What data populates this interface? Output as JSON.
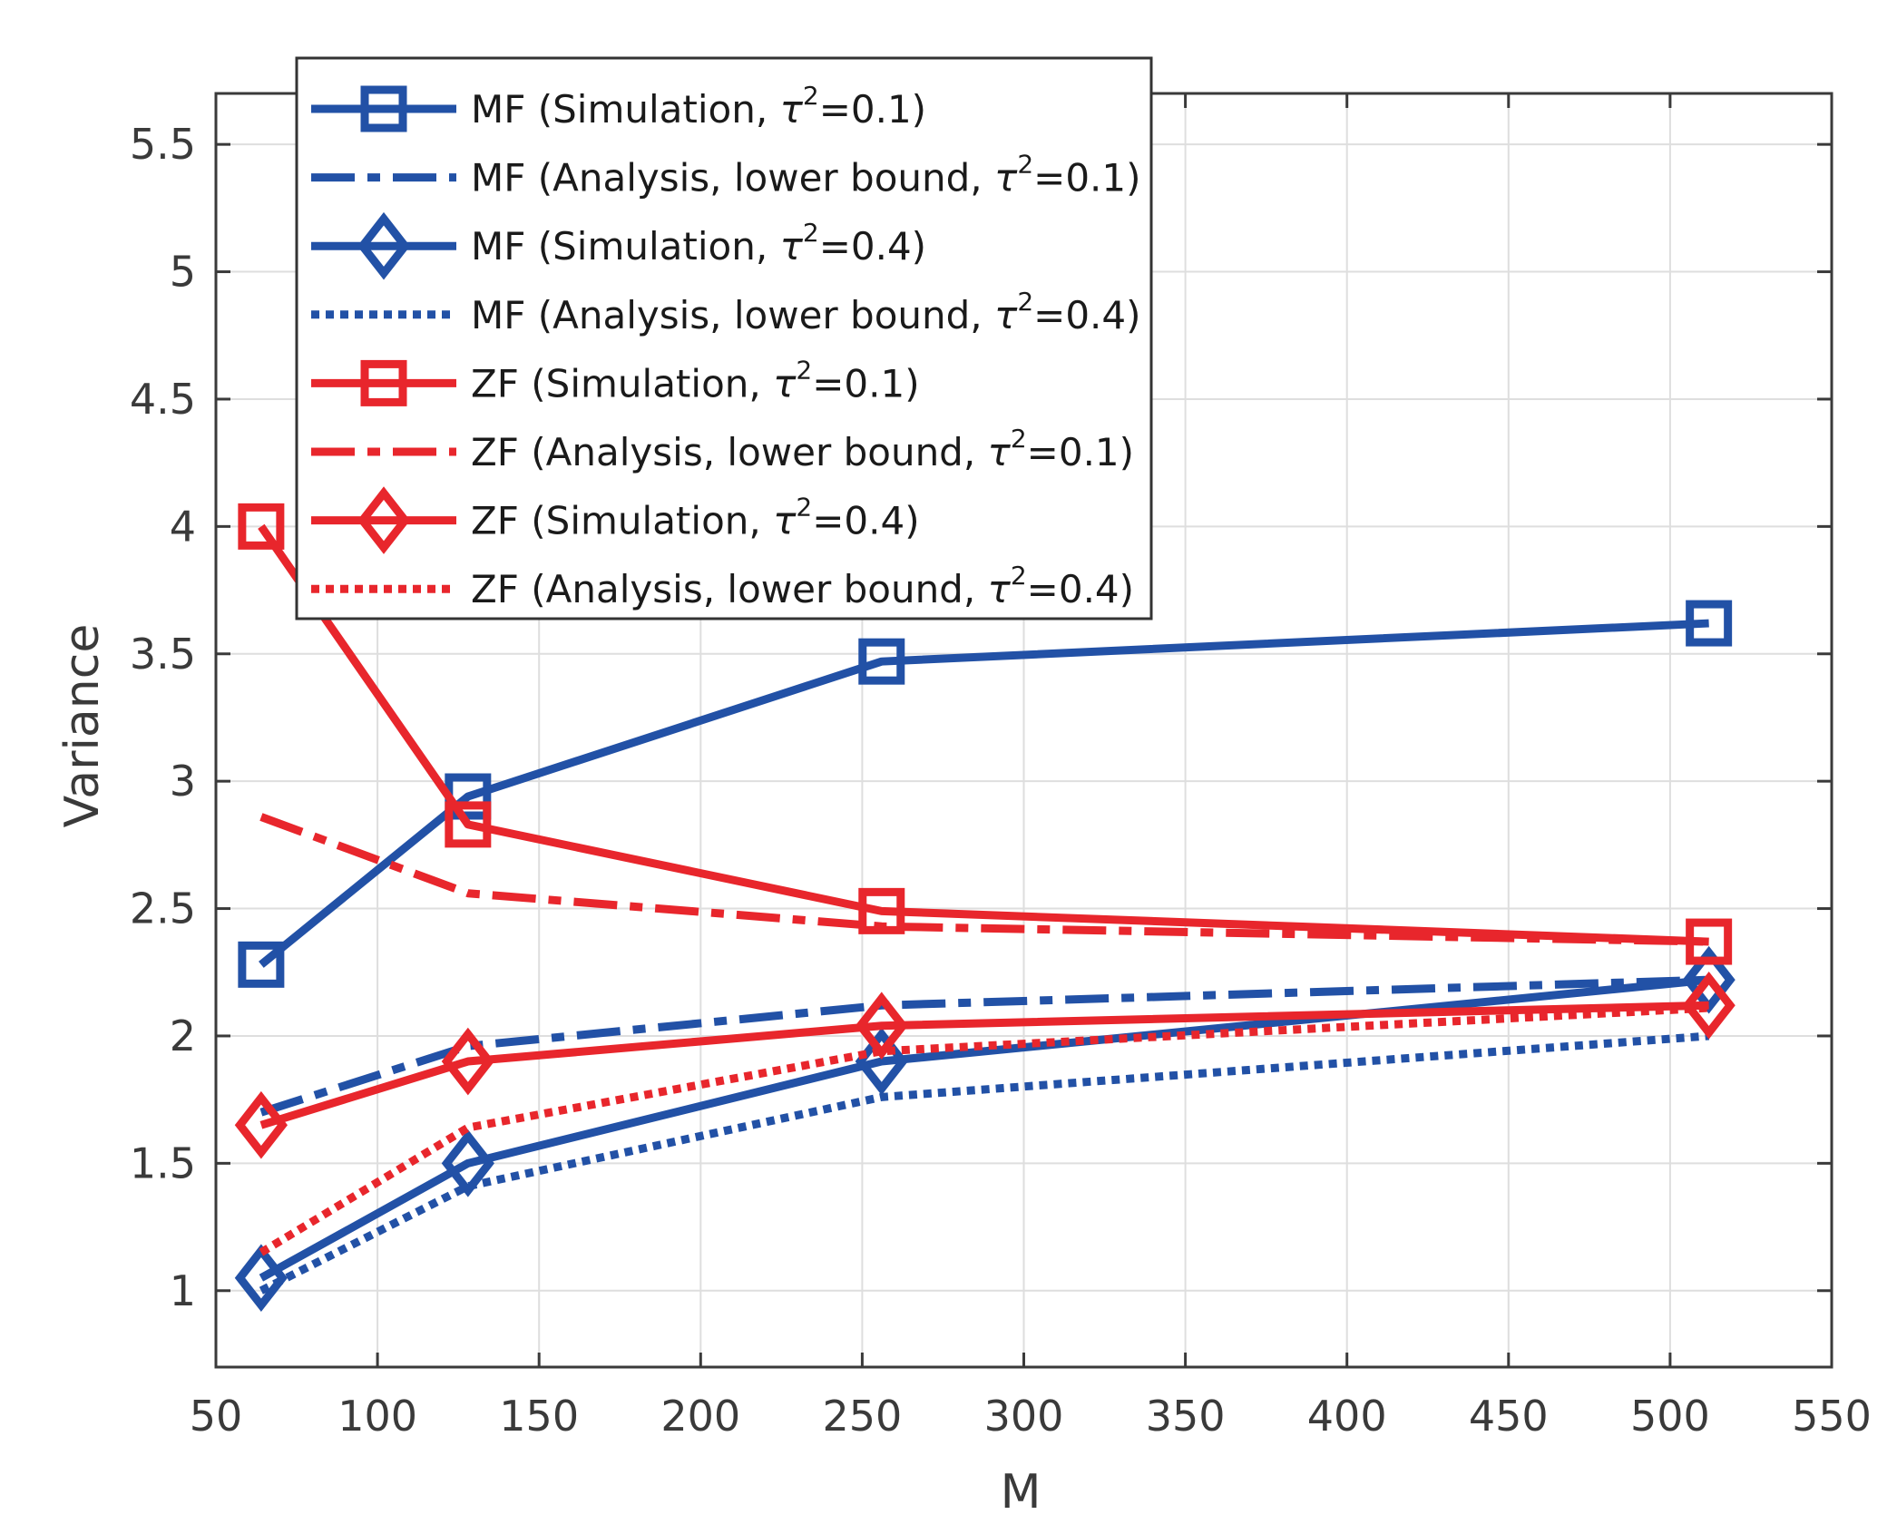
{
  "colors": {
    "blue": "#2251A6",
    "red": "#E8262C",
    "grid": "#DEDEDE",
    "axis": "#3a3a3a"
  },
  "chart_data": {
    "type": "line",
    "title": "",
    "xlabel": "M",
    "ylabel": "Variance",
    "xlim": [
      50,
      550
    ],
    "ylim": [
      0.7,
      5.7
    ],
    "xticks": [
      50,
      100,
      150,
      200,
      250,
      300,
      350,
      400,
      450,
      500,
      550
    ],
    "yticks": [
      1,
      1.5,
      2,
      2.5,
      3,
      3.5,
      4,
      4.5,
      5,
      5.5
    ],
    "xtick_labels": [
      "50",
      "100",
      "150",
      "200",
      "250",
      "300",
      "350",
      "400",
      "450",
      "500",
      "550"
    ],
    "ytick_labels": [
      "1",
      "1.5",
      "2",
      "2.5",
      "3",
      "3.5",
      "4",
      "4.5",
      "5",
      "5.5"
    ],
    "grid": true,
    "legend_position": "top-left",
    "series": [
      {
        "name": "MF (Simulation,  τ²=0.1)",
        "legend_prefix": "MF (Simulation,  ",
        "legend_value": "=0.1)",
        "color": "blue",
        "style": "solid",
        "marker": "square",
        "x": [
          64,
          128,
          256,
          512
        ],
        "y": [
          2.28,
          2.94,
          3.47,
          3.62
        ]
      },
      {
        "name": "MF (Analysis, lower bound,  τ²=0.1)",
        "legend_prefix": "MF (Analysis, lower bound,  ",
        "legend_value": "=0.1)",
        "color": "blue",
        "style": "dashdot",
        "marker": "none",
        "x": [
          64,
          128,
          256,
          512
        ],
        "y": [
          1.7,
          1.96,
          2.12,
          2.22
        ]
      },
      {
        "name": "MF (Simulation,  τ²=0.4)",
        "legend_prefix": "MF (Simulation,  ",
        "legend_value": "=0.4)",
        "color": "blue",
        "style": "solid",
        "marker": "diamond",
        "x": [
          64,
          128,
          256,
          512
        ],
        "y": [
          1.05,
          1.5,
          1.9,
          2.22
        ]
      },
      {
        "name": "MF (Analysis, lower bound,   τ²=0.4)",
        "legend_prefix": "MF (Analysis, lower bound,   ",
        "legend_value": "=0.4)",
        "color": "blue",
        "style": "dotted",
        "marker": "none",
        "x": [
          64,
          128,
          256,
          512
        ],
        "y": [
          1.0,
          1.41,
          1.76,
          2.0
        ]
      },
      {
        "name": "ZF (Simulation,  τ²=0.1)",
        "legend_prefix": "ZF (Simulation,  ",
        "legend_value": "=0.1)",
        "color": "red",
        "style": "solid",
        "marker": "square",
        "x": [
          64,
          128,
          256,
          512
        ],
        "y": [
          4.0,
          2.83,
          2.49,
          2.37
        ]
      },
      {
        "name": "ZF (Analysis, lower bound,   τ²=0.1)",
        "legend_prefix": "ZF (Analysis, lower bound,   ",
        "legend_value": "=0.1)",
        "color": "red",
        "style": "dashdot",
        "marker": "none",
        "x": [
          64,
          128,
          256,
          512
        ],
        "y": [
          2.86,
          2.56,
          2.43,
          2.37
        ]
      },
      {
        "name": "ZF (Simulation,  τ²=0.4)",
        "legend_prefix": "ZF (Simulation,  ",
        "legend_value": "=0.4)",
        "color": "red",
        "style": "solid",
        "marker": "diamond",
        "x": [
          64,
          128,
          256,
          512
        ],
        "y": [
          1.65,
          1.9,
          2.04,
          2.12
        ]
      },
      {
        "name": "ZF (Analysis, lower bound,   τ²=0.4)",
        "legend_prefix": "ZF (Analysis, lower bound,   ",
        "legend_value": "=0.4)",
        "color": "red",
        "style": "dotted",
        "marker": "none",
        "x": [
          64,
          128,
          256,
          512
        ],
        "y": [
          1.15,
          1.64,
          1.94,
          2.11
        ]
      }
    ]
  }
}
